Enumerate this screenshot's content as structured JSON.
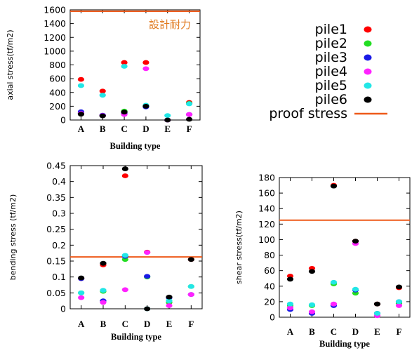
{
  "colors": {
    "pile1": "#ff0000",
    "pile2": "#22dd22",
    "pile3": "#1a1ae6",
    "pile4": "#ff22ff",
    "pile5": "#22e6e6",
    "pile6": "#000000",
    "proof_stress": "#ee5a1a",
    "annotation": "#e07a1f"
  },
  "legend": {
    "items": [
      {
        "label": "pile1",
        "color_key": "pile1",
        "marker": "dot"
      },
      {
        "label": "pile2",
        "color_key": "pile2",
        "marker": "dot"
      },
      {
        "label": "pile3",
        "color_key": "pile3",
        "marker": "dot"
      },
      {
        "label": "pile4",
        "color_key": "pile4",
        "marker": "dot"
      },
      {
        "label": "pile5",
        "color_key": "pile5",
        "marker": "dot"
      },
      {
        "label": "pile6",
        "color_key": "pile6",
        "marker": "dot"
      },
      {
        "label": "proof stress",
        "color_key": "proof_stress",
        "marker": "line"
      }
    ]
  },
  "chart_data": [
    {
      "type": "scatter",
      "xlabel": "Building type",
      "ylabel": "axial stress(tf/m2)",
      "categories": [
        "A",
        "B",
        "C",
        "D",
        "E",
        "F"
      ],
      "ylim": [
        0,
        1600
      ],
      "yticks": [
        0,
        200,
        400,
        600,
        800,
        1000,
        1200,
        1400,
        1600
      ],
      "ytick_labels": [
        "0",
        "200",
        "400",
        "600",
        "800",
        "1000",
        "1200",
        "1400",
        "1600"
      ],
      "grid": false,
      "series": [
        {
          "name": "pile1",
          "values": [
            590,
            420,
            835,
            835,
            0,
            255
          ]
        },
        {
          "name": "pile2",
          "values": [
            100,
            65,
            130,
            205,
            0,
            240
          ]
        },
        {
          "name": "pile3",
          "values": [
            120,
            70,
            100,
            190,
            0,
            80
          ]
        },
        {
          "name": "pile4",
          "values": [
            95,
            65,
            80,
            745,
            0,
            80
          ]
        },
        {
          "name": "pile5",
          "values": [
            500,
            360,
            780,
            215,
            65,
            235
          ]
        },
        {
          "name": "pile6",
          "values": [
            85,
            60,
            115,
            200,
            0,
            10
          ]
        }
      ],
      "proof_stress": 1580,
      "annotation": "設計耐力"
    },
    {
      "type": "scatter",
      "xlabel": "Building type",
      "ylabel": "bending stress (tf/m2)",
      "categories": [
        "A",
        "B",
        "C",
        "D",
        "E",
        "F"
      ],
      "ylim": [
        0,
        0.45
      ],
      "yticks": [
        0,
        0.05,
        0.1,
        0.15,
        0.2,
        0.25,
        0.3,
        0.35,
        0.4,
        0.45
      ],
      "ytick_labels": [
        "0",
        "0.05",
        "0.1",
        "0.15",
        "0.2",
        "0.25",
        "0.3",
        "0.35",
        "0.4",
        "0.45"
      ],
      "grid": false,
      "series": [
        {
          "name": "pile1",
          "values": [
            0.095,
            0.138,
            0.418,
            0.178,
            0.02,
            0.155
          ]
        },
        {
          "name": "pile2",
          "values": [
            0.05,
            0.055,
            0.155,
            0.1,
            0.02,
            0.07
          ]
        },
        {
          "name": "pile3",
          "values": [
            0.095,
            0.025,
            0.165,
            0.102,
            0.035,
            0.045
          ]
        },
        {
          "name": "pile4",
          "values": [
            0.035,
            0.02,
            0.06,
            0.177,
            0.01,
            0.045
          ]
        },
        {
          "name": "pile5",
          "values": [
            0.05,
            0.058,
            0.168,
            0.0,
            0.025,
            0.07
          ]
        },
        {
          "name": "pile6",
          "values": [
            0.097,
            0.143,
            0.44,
            0.0,
            0.037,
            0.155
          ]
        }
      ],
      "proof_stress": 0.163
    },
    {
      "type": "scatter",
      "xlabel": "Building type",
      "ylabel": "shear stress(tf/m2)",
      "categories": [
        "A",
        "B",
        "C",
        "D",
        "E",
        "F"
      ],
      "ylim": [
        0,
        180
      ],
      "yticks": [
        0,
        20,
        40,
        60,
        80,
        100,
        120,
        140,
        160,
        180
      ],
      "ytick_labels": [
        "0",
        "20",
        "40",
        "60",
        "80",
        "100",
        "120",
        "140",
        "160",
        "180"
      ],
      "grid": false,
      "series": [
        {
          "name": "pile1",
          "values": [
            53,
            63,
            170,
            98,
            17,
            38
          ]
        },
        {
          "name": "pile2",
          "values": [
            15,
            15,
            43,
            31,
            5,
            18
          ]
        },
        {
          "name": "pile3",
          "values": [
            10,
            5,
            15,
            35,
            5,
            20
          ]
        },
        {
          "name": "pile4",
          "values": [
            12,
            7,
            17,
            95,
            2,
            15
          ]
        },
        {
          "name": "pile5",
          "values": [
            17,
            16,
            45,
            36,
            5,
            20
          ]
        },
        {
          "name": "pile6",
          "values": [
            49,
            59,
            169,
            98,
            17,
            39
          ]
        }
      ],
      "proof_stress": 125
    }
  ]
}
